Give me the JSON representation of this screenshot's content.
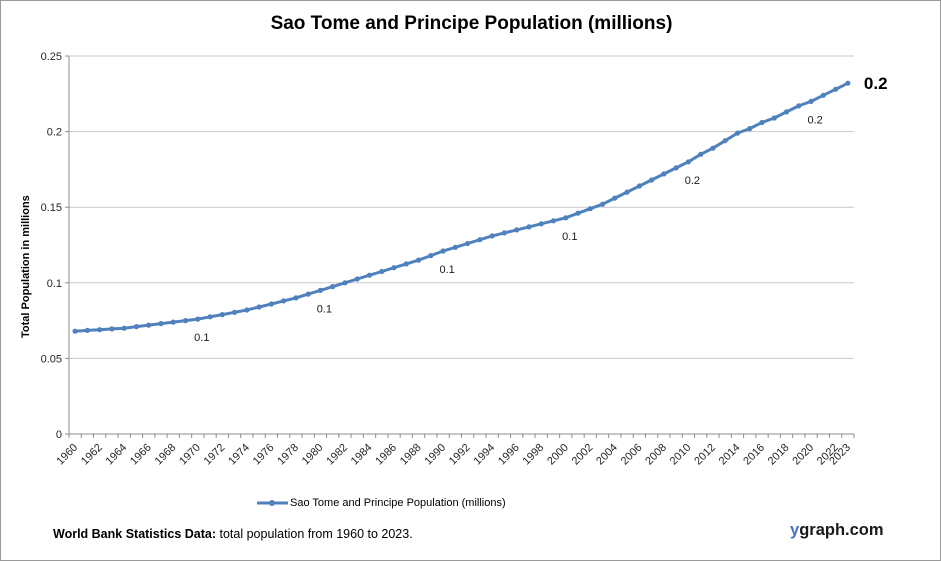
{
  "chart": {
    "title": "Sao Tome and Principe Population (millions)",
    "y_axis": {
      "title": "Total Population in millions",
      "ticks": [
        0,
        0.05,
        0.1,
        0.15,
        0.2,
        0.25
      ],
      "tick_labels": [
        "0",
        "0.05",
        "0.1",
        "0.15",
        "0.2",
        "0.25"
      ]
    },
    "x_axis": {
      "tick_labels": [
        "1960",
        "1962",
        "1964",
        "1966",
        "1968",
        "1970",
        "1972",
        "1974",
        "1976",
        "1978",
        "1980",
        "1982",
        "1984",
        "1986",
        "1988",
        "1990",
        "1992",
        "1994",
        "1996",
        "1998",
        "2000",
        "2002",
        "2004",
        "2006",
        "2008",
        "2010",
        "2012",
        "2014",
        "2016",
        "2018",
        "2020",
        "2022",
        "2023"
      ]
    }
  },
  "chart_data": {
    "type": "line",
    "title": "Sao Tome and Principe Population (millions)",
    "xlabel": "",
    "ylabel": "Total Population in millions",
    "ylim": [
      0,
      0.25
    ],
    "grid": "horizontal",
    "legend_position": "bottom",
    "series": [
      {
        "name": "Sao Tome and Principe Population (millions)",
        "x": [
          1960,
          1961,
          1962,
          1963,
          1964,
          1965,
          1966,
          1967,
          1968,
          1969,
          1970,
          1971,
          1972,
          1973,
          1974,
          1975,
          1976,
          1977,
          1978,
          1979,
          1980,
          1981,
          1982,
          1983,
          1984,
          1985,
          1986,
          1987,
          1988,
          1989,
          1990,
          1991,
          1992,
          1993,
          1994,
          1995,
          1996,
          1997,
          1998,
          1999,
          2000,
          2001,
          2002,
          2003,
          2004,
          2005,
          2006,
          2007,
          2008,
          2009,
          2010,
          2011,
          2012,
          2013,
          2014,
          2015,
          2016,
          2017,
          2018,
          2019,
          2020,
          2021,
          2022,
          2023
        ],
        "values": [
          0.068,
          0.0685,
          0.069,
          0.0695,
          0.07,
          0.071,
          0.072,
          0.073,
          0.074,
          0.075,
          0.076,
          0.0775,
          0.079,
          0.0805,
          0.082,
          0.084,
          0.086,
          0.088,
          0.09,
          0.0925,
          0.095,
          0.0975,
          0.1,
          0.1025,
          0.105,
          0.1075,
          0.11,
          0.1125,
          0.115,
          0.118,
          0.121,
          0.1235,
          0.126,
          0.1285,
          0.131,
          0.133,
          0.135,
          0.137,
          0.139,
          0.141,
          0.143,
          0.146,
          0.149,
          0.152,
          0.156,
          0.16,
          0.164,
          0.168,
          0.172,
          0.176,
          0.18,
          0.185,
          0.189,
          0.194,
          0.199,
          0.202,
          0.206,
          0.209,
          0.213,
          0.217,
          0.22,
          0.224,
          0.228,
          0.232
        ]
      }
    ],
    "point_labels": [
      {
        "year": 1970,
        "text": "0.1"
      },
      {
        "year": 1980,
        "text": "0.1"
      },
      {
        "year": 1990,
        "text": "0.1"
      },
      {
        "year": 2000,
        "text": "0.1"
      },
      {
        "year": 2010,
        "text": "0.2"
      },
      {
        "year": 2020,
        "text": "0.2"
      }
    ],
    "end_label": {
      "year": 2023,
      "text": "0.2"
    }
  },
  "legend": {
    "label": "Sao Tome and Principe Population (millions)"
  },
  "footer": {
    "bold": "World Bank Statistics Data:",
    "regular": " total population from 1960 to 2023."
  },
  "branding": {
    "prefix": "y",
    "rest": "graph.com"
  },
  "colors": {
    "line": "#4F81BD",
    "grid": "#C9C9C9",
    "axis": "#8C8C8C",
    "text": "#262626",
    "brand_prefix": "#4472C4",
    "brand_rest": "#1A1A1A"
  }
}
